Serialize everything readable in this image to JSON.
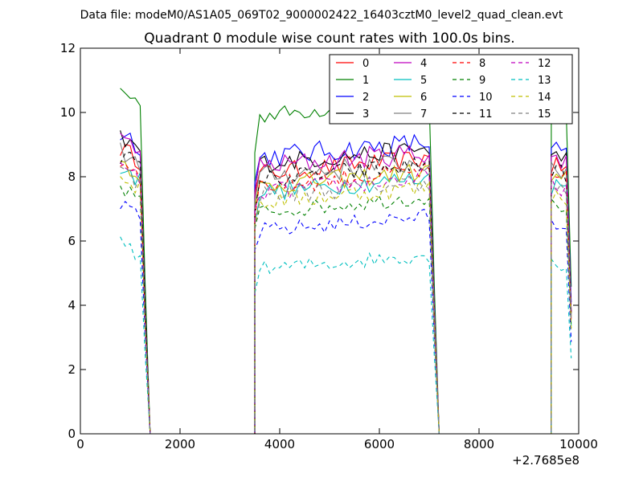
{
  "figure": {
    "suptitle": "Data file: modeM0/AS1A05_069T02_9000002422_16403cztM0_level2_quad_clean.evt"
  },
  "chart_data": {
    "type": "line",
    "title": "Quadrant 0 module wise count rates with 100.0s bins.",
    "xlabel": "",
    "ylabel": "",
    "xlim": [
      0,
      10000
    ],
    "ylim": [
      0,
      12
    ],
    "x_offset_label": "+2.7685e8",
    "xticks": [
      0,
      2000,
      4000,
      6000,
      8000,
      10000
    ],
    "xtick_labels": [
      "0",
      "2000",
      "4000",
      "6000",
      "8000",
      "10000"
    ],
    "yticks": [
      0,
      2,
      4,
      6,
      8,
      10,
      12
    ],
    "ytick_labels": [
      "0",
      "2",
      "4",
      "6",
      "8",
      "10",
      "12"
    ],
    "grid": false,
    "legend_position": "top-right",
    "legend_columns": 4,
    "segments": [
      {
        "start": 800,
        "n": 6
      },
      {
        "start": 3500,
        "n": 37
      },
      {
        "start": 9450,
        "n": 5
      }
    ],
    "gap_level": 0,
    "series": [
      {
        "name": "0",
        "color": "#ff0000",
        "dash": "solid",
        "level": 8.3,
        "jitter": 0.3
      },
      {
        "name": "1",
        "color": "#008000",
        "dash": "solid",
        "level": 10.1,
        "jitter": 0.25
      },
      {
        "name": "2",
        "color": "#0000ff",
        "dash": "solid",
        "level": 8.8,
        "jitter": 0.35
      },
      {
        "name": "3",
        "color": "#000000",
        "dash": "solid",
        "level": 8.6,
        "jitter": 0.3
      },
      {
        "name": "4",
        "color": "#bf00bf",
        "dash": "solid",
        "level": 8.5,
        "jitter": 0.35
      },
      {
        "name": "5",
        "color": "#00bfbf",
        "dash": "solid",
        "level": 7.7,
        "jitter": 0.3
      },
      {
        "name": "6",
        "color": "#bfbf00",
        "dash": "solid",
        "level": 7.9,
        "jitter": 0.3
      },
      {
        "name": "7",
        "color": "#808080",
        "dash": "solid",
        "level": 8.2,
        "jitter": 0.35
      },
      {
        "name": "8",
        "color": "#ff0000",
        "dash": "dashed",
        "level": 7.9,
        "jitter": 0.3
      },
      {
        "name": "9",
        "color": "#008000",
        "dash": "dashed",
        "level": 7.1,
        "jitter": 0.25
      },
      {
        "name": "10",
        "color": "#0000ff",
        "dash": "dashed",
        "level": 6.5,
        "jitter": 0.25
      },
      {
        "name": "11",
        "color": "#000000",
        "dash": "dashed",
        "level": 8.1,
        "jitter": 0.3
      },
      {
        "name": "12",
        "color": "#bf00bf",
        "dash": "dashed",
        "level": 7.7,
        "jitter": 0.3
      },
      {
        "name": "13",
        "color": "#00bfbf",
        "dash": "dashed",
        "level": 5.3,
        "jitter": 0.25
      },
      {
        "name": "14",
        "color": "#bfbf00",
        "dash": "dashed",
        "level": 7.4,
        "jitter": 0.3
      },
      {
        "name": "15",
        "color": "#808080",
        "dash": "dashed",
        "level": 7.6,
        "jitter": 0.3
      }
    ]
  }
}
